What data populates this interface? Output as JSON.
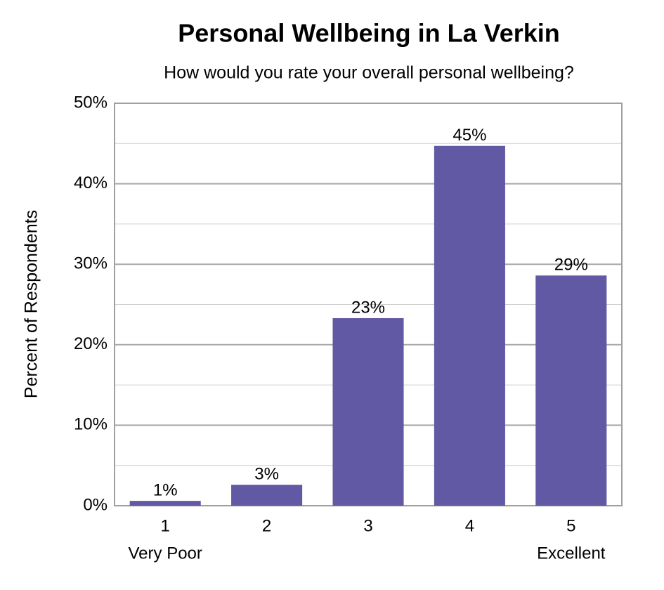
{
  "chart_data": {
    "type": "bar",
    "title": "Personal Wellbeing in La Verkin",
    "subtitle": "How would you rate your overall personal wellbeing?",
    "y_label": "Percent of Respondents",
    "categories": [
      "1",
      "2",
      "3",
      "4",
      "5"
    ],
    "category_sublabels": [
      "Very Poor",
      null,
      null,
      null,
      "Excellent"
    ],
    "values": [
      0.6,
      2.6,
      23.3,
      44.7,
      28.6
    ],
    "value_labels": [
      "1%",
      "3%",
      "23%",
      "45%",
      "29%"
    ],
    "color": "#6159a3",
    "ylim": [
      0,
      50
    ],
    "yticks": [
      {
        "value": 0,
        "label": "0%"
      },
      {
        "value": 10,
        "label": "10%"
      },
      {
        "value": 20,
        "label": "20%"
      },
      {
        "value": 30,
        "label": "30%"
      },
      {
        "value": 40,
        "label": "40%"
      },
      {
        "value": 50,
        "label": "50%"
      }
    ],
    "minor_yticks": [
      5,
      15,
      25,
      35,
      45
    ],
    "grid": true
  }
}
